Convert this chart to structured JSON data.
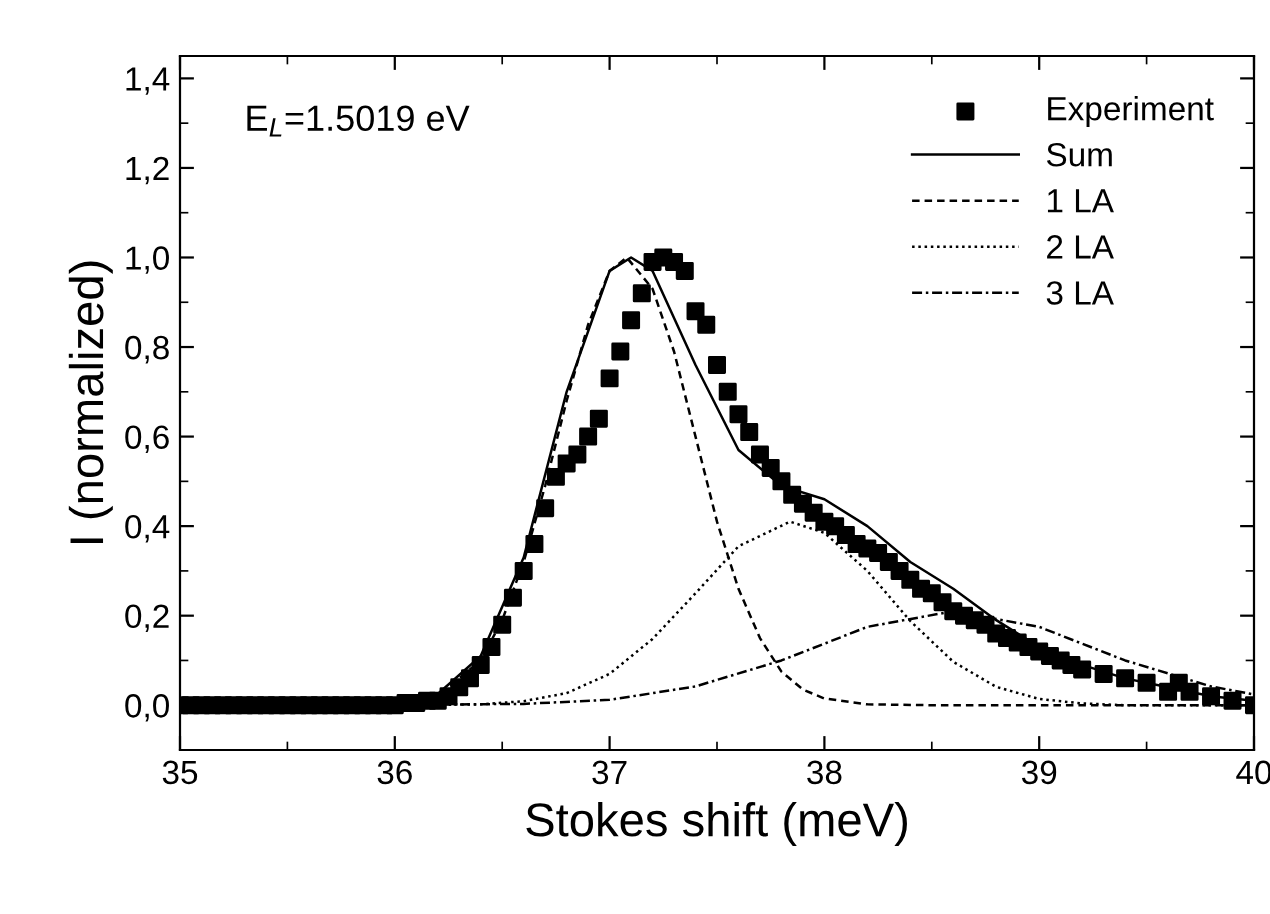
{
  "chart_data": {
    "type": "line",
    "xlabel": "Stokes shift (meV)",
    "ylabel": "I (normalized)",
    "annotations": [
      "E$_{L}$=1.5019 eV"
    ],
    "xlim": [
      35,
      40
    ],
    "ylim": [
      -0.1,
      1.45
    ],
    "xticks": [
      35,
      36,
      37,
      38,
      39,
      40
    ],
    "yticks": [
      {
        "value": 0.0,
        "label": "0,0"
      },
      {
        "value": 0.2,
        "label": "0,2"
      },
      {
        "value": 0.4,
        "label": "0,4"
      },
      {
        "value": 0.6,
        "label": "0,6"
      },
      {
        "value": 0.8,
        "label": "0,8"
      },
      {
        "value": 1.0,
        "label": "1,0"
      },
      {
        "value": 1.2,
        "label": "1,2"
      },
      {
        "value": 1.4,
        "label": "1,4"
      }
    ],
    "grid": false,
    "legend": "top right",
    "series": [
      {
        "name": "Experiment",
        "type": "scatter",
        "marker": "square",
        "color": "#000000",
        "x": [
          35.0,
          35.05,
          35.1,
          35.15,
          35.2,
          35.25,
          35.3,
          35.35,
          35.4,
          35.45,
          35.5,
          35.55,
          35.6,
          35.65,
          35.7,
          35.75,
          35.8,
          35.85,
          35.9,
          35.95,
          36.0,
          36.05,
          36.1,
          36.15,
          36.2,
          36.25,
          36.3,
          36.35,
          36.4,
          36.45,
          36.5,
          36.55,
          36.6,
          36.65,
          36.7,
          36.75,
          36.8,
          36.85,
          36.9,
          36.95,
          37.0,
          37.05,
          37.1,
          37.15,
          37.2,
          37.25,
          37.3,
          37.35,
          37.4,
          37.45,
          37.5,
          37.55,
          37.6,
          37.65,
          37.7,
          37.75,
          37.8,
          37.85,
          37.9,
          37.95,
          38.0,
          38.05,
          38.1,
          38.15,
          38.2,
          38.25,
          38.3,
          38.35,
          38.4,
          38.45,
          38.5,
          38.55,
          38.6,
          38.65,
          38.7,
          38.75,
          38.8,
          38.85,
          38.9,
          38.95,
          39.0,
          39.05,
          39.1,
          39.15,
          39.2,
          39.3,
          39.4,
          39.5,
          39.6,
          39.65,
          39.7,
          39.8,
          39.9,
          40.0
        ],
        "values": [
          0,
          0,
          0,
          0,
          0,
          0,
          0,
          0,
          0,
          0,
          0,
          0,
          0,
          0,
          0,
          0,
          0,
          0,
          0,
          0,
          0,
          0.005,
          0.005,
          0.01,
          0.01,
          0.02,
          0.04,
          0.06,
          0.09,
          0.13,
          0.18,
          0.24,
          0.3,
          0.36,
          0.44,
          0.51,
          0.54,
          0.56,
          0.6,
          0.64,
          0.73,
          0.79,
          0.86,
          0.92,
          0.99,
          1.0,
          0.99,
          0.97,
          0.88,
          0.85,
          0.76,
          0.7,
          0.65,
          0.61,
          0.56,
          0.53,
          0.5,
          0.47,
          0.45,
          0.43,
          0.41,
          0.4,
          0.38,
          0.36,
          0.35,
          0.34,
          0.32,
          0.3,
          0.28,
          0.26,
          0.25,
          0.23,
          0.21,
          0.2,
          0.19,
          0.18,
          0.16,
          0.15,
          0.14,
          0.13,
          0.12,
          0.11,
          0.1,
          0.09,
          0.08,
          0.07,
          0.06,
          0.05,
          0.03,
          0.05,
          0.03,
          0.02,
          0.01,
          0.0
        ]
      },
      {
        "name": "Sum",
        "line_style": "solid",
        "color": "#000000",
        "x": [
          35.0,
          36.0,
          36.2,
          36.4,
          36.6,
          36.8,
          37.0,
          37.1,
          37.2,
          37.4,
          37.6,
          37.8,
          38.0,
          38.2,
          38.4,
          38.6,
          38.8,
          39.0,
          39.2,
          39.4,
          39.6,
          39.8,
          40.0
        ],
        "values": [
          0,
          0.005,
          0.025,
          0.11,
          0.33,
          0.7,
          0.97,
          1.0,
          0.97,
          0.76,
          0.57,
          0.49,
          0.46,
          0.4,
          0.32,
          0.26,
          0.19,
          0.13,
          0.09,
          0.06,
          0.04,
          0.02,
          0.01
        ]
      },
      {
        "name": "1 LA",
        "line_style": "dashed",
        "color": "#000000",
        "x": [
          35.0,
          36.0,
          36.2,
          36.4,
          36.5,
          36.6,
          36.7,
          36.8,
          36.9,
          37.0,
          37.08,
          37.2,
          37.3,
          37.4,
          37.5,
          37.6,
          37.7,
          37.8,
          37.9,
          38.0,
          38.2,
          38.5,
          40.0
        ],
        "values": [
          0,
          0,
          0.02,
          0.1,
          0.19,
          0.32,
          0.49,
          0.68,
          0.85,
          0.97,
          1.0,
          0.93,
          0.79,
          0.6,
          0.41,
          0.26,
          0.15,
          0.075,
          0.035,
          0.015,
          0.002,
          0,
          0
        ]
      },
      {
        "name": "2 LA",
        "line_style": "dotted",
        "color": "#000000",
        "x": [
          35.0,
          36.0,
          36.4,
          36.6,
          36.8,
          37.0,
          37.2,
          37.4,
          37.6,
          37.84,
          38.0,
          38.2,
          38.4,
          38.6,
          38.8,
          39.0,
          39.2,
          39.4,
          40.0
        ],
        "values": [
          0,
          0,
          0.002,
          0.009,
          0.027,
          0.07,
          0.148,
          0.25,
          0.355,
          0.41,
          0.385,
          0.3,
          0.188,
          0.097,
          0.041,
          0.014,
          0.004,
          0,
          0
        ]
      },
      {
        "name": "3 LA",
        "line_style": "dashdot",
        "color": "#000000",
        "x": [
          35.0,
          35.8,
          36.6,
          37.0,
          37.4,
          37.8,
          38.2,
          38.6,
          39.0,
          39.4,
          39.8,
          40.0
        ],
        "values": [
          0,
          0,
          0.003,
          0.012,
          0.042,
          0.1,
          0.175,
          0.21,
          0.175,
          0.1,
          0.042,
          0.024
        ]
      }
    ]
  }
}
